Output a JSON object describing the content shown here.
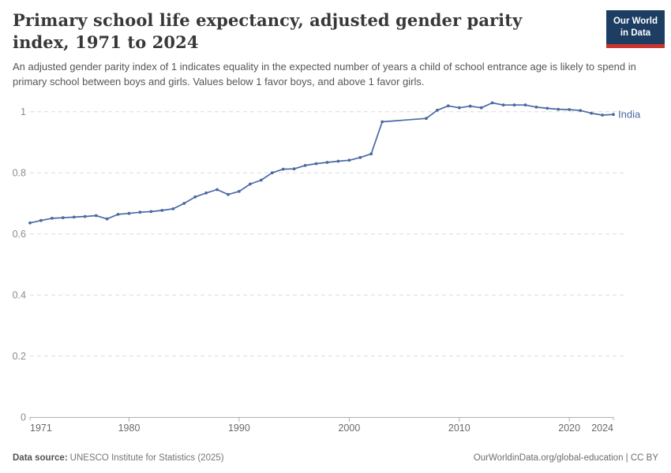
{
  "header": {
    "title": "Primary school life expectancy, adjusted gender parity index, 1971 to 2024",
    "subtitle": "An adjusted gender parity index of 1 indicates equality in the expected number of years a child of school entrance age is likely to spend in primary school between boys and girls. Values below 1 favor boys, and above 1 favor girls."
  },
  "logo": {
    "line1": "Our World",
    "line2": "in Data",
    "bg_color": "#1d3d63",
    "bar_color": "#c9352e"
  },
  "footer": {
    "source_label": "Data source:",
    "source_text": "UNESCO Institute for Statistics (2025)",
    "right": "OurWorldinData.org/global-education | CC BY"
  },
  "chart_data": {
    "type": "line",
    "title": "Primary school life expectancy, adjusted gender parity index, 1971 to 2024",
    "xlabel": "",
    "ylabel": "",
    "xlim": [
      1971,
      2024
    ],
    "ylim": [
      0,
      1.03
    ],
    "grid": "dashed-horizontal",
    "legend_position": "end-of-line-label",
    "colors": {
      "grid": "#dcdcdc",
      "axis": "#b0b0b0",
      "y_label": "#8c8c8c",
      "x_label": "#696969"
    },
    "y_axis": {
      "ticks": [
        {
          "value": 0,
          "label": "0"
        },
        {
          "value": 0.2,
          "label": "0.2"
        },
        {
          "value": 0.4,
          "label": "0.4"
        },
        {
          "value": 0.6,
          "label": "0.6"
        },
        {
          "value": 0.8,
          "label": "0.8"
        },
        {
          "value": 1,
          "label": "1"
        }
      ]
    },
    "x_axis": {
      "ticks": [
        {
          "year": 1971,
          "label": "1971",
          "align": "start"
        },
        {
          "year": 1980,
          "label": "1980",
          "align": "middle"
        },
        {
          "year": 1990,
          "label": "1990",
          "align": "middle"
        },
        {
          "year": 2000,
          "label": "2000",
          "align": "middle"
        },
        {
          "year": 2010,
          "label": "2010",
          "align": "middle"
        },
        {
          "year": 2020,
          "label": "2020",
          "align": "middle"
        },
        {
          "year": 2024,
          "label": "2024",
          "align": "end"
        }
      ]
    },
    "series": [
      {
        "name": "India",
        "color": "#4a69a3",
        "note": "no data points for 2004-2006; line connects 2003 to 2007 directly",
        "points": [
          [
            1971,
            0.636
          ],
          [
            1972,
            0.644
          ],
          [
            1973,
            0.651
          ],
          [
            1974,
            0.653
          ],
          [
            1975,
            0.655
          ],
          [
            1976,
            0.657
          ],
          [
            1977,
            0.66
          ],
          [
            1978,
            0.649
          ],
          [
            1979,
            0.664
          ],
          [
            1980,
            0.667
          ],
          [
            1981,
            0.671
          ],
          [
            1982,
            0.673
          ],
          [
            1983,
            0.677
          ],
          [
            1984,
            0.682
          ],
          [
            1985,
            0.7
          ],
          [
            1986,
            0.721
          ],
          [
            1987,
            0.734
          ],
          [
            1988,
            0.745
          ],
          [
            1989,
            0.729
          ],
          [
            1990,
            0.739
          ],
          [
            1991,
            0.763
          ],
          [
            1992,
            0.776
          ],
          [
            1993,
            0.8
          ],
          [
            1994,
            0.812
          ],
          [
            1995,
            0.813
          ],
          [
            1996,
            0.824
          ],
          [
            1997,
            0.83
          ],
          [
            1998,
            0.834
          ],
          [
            1999,
            0.838
          ],
          [
            2000,
            0.841
          ],
          [
            2001,
            0.85
          ],
          [
            2002,
            0.862
          ],
          [
            2003,
            0.967
          ],
          [
            2007,
            0.978
          ],
          [
            2008,
            1.005
          ],
          [
            2009,
            1.019
          ],
          [
            2010,
            1.013
          ],
          [
            2011,
            1.018
          ],
          [
            2012,
            1.013
          ],
          [
            2013,
            1.029
          ],
          [
            2014,
            1.022
          ],
          [
            2015,
            1.022
          ],
          [
            2016,
            1.022
          ],
          [
            2017,
            1.015
          ],
          [
            2018,
            1.011
          ],
          [
            2019,
            1.008
          ],
          [
            2020,
            1.007
          ],
          [
            2021,
            1.004
          ],
          [
            2022,
            0.995
          ],
          [
            2023,
            0.989
          ],
          [
            2024,
            0.991
          ]
        ]
      }
    ]
  }
}
